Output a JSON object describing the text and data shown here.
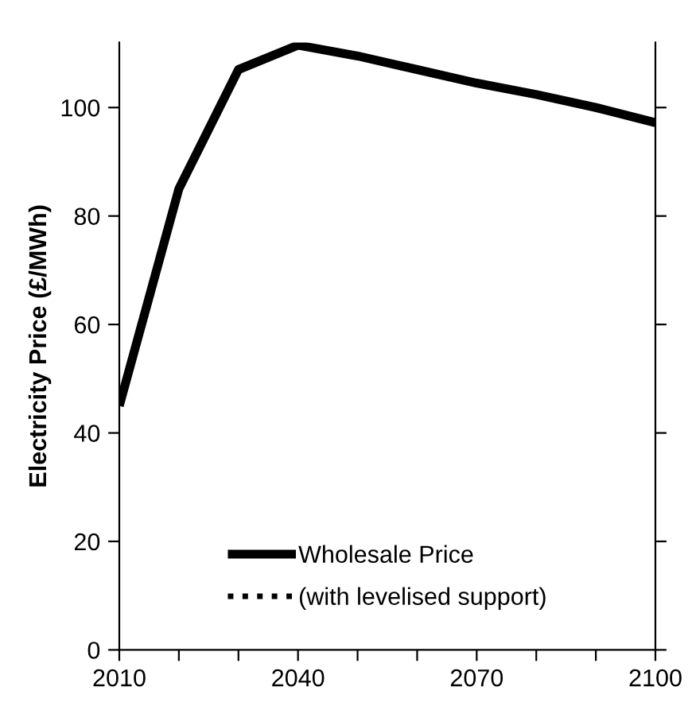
{
  "chart_data": {
    "type": "line",
    "ylabel": "Electricity Price (£/MWh)",
    "x": [
      2010,
      2020,
      2030,
      2040,
      2050,
      2060,
      2070,
      2080,
      2090,
      2100
    ],
    "series": [
      {
        "name": "Wholesale Price",
        "color": "#000000",
        "line_style": "solid",
        "values": [
          45,
          85,
          107,
          111.5,
          109.5,
          107,
          104.5,
          102.4,
          100,
          97.2
        ]
      },
      {
        "name": "(with levelised support)",
        "color": "#000000",
        "line_style": "dotted",
        "values": [
          null,
          null,
          null,
          null,
          null,
          null,
          null,
          null,
          null,
          null
        ]
      }
    ],
    "xlim": [
      2010,
      2100
    ],
    "xticks": [
      2010,
      {
        "value": 2020,
        "label": null
      },
      {
        "value": 2030,
        "label": null
      },
      2040,
      {
        "value": 2050,
        "label": null
      },
      {
        "value": 2060,
        "label": null
      },
      2070,
      {
        "value": 2080,
        "label": null
      },
      {
        "value": 2090,
        "label": null
      },
      2100
    ],
    "ylim": [
      0,
      112
    ],
    "yticks": [
      0,
      20,
      40,
      60,
      80,
      100
    ],
    "grid": false,
    "legend": "bottom",
    "marker": "none"
  }
}
